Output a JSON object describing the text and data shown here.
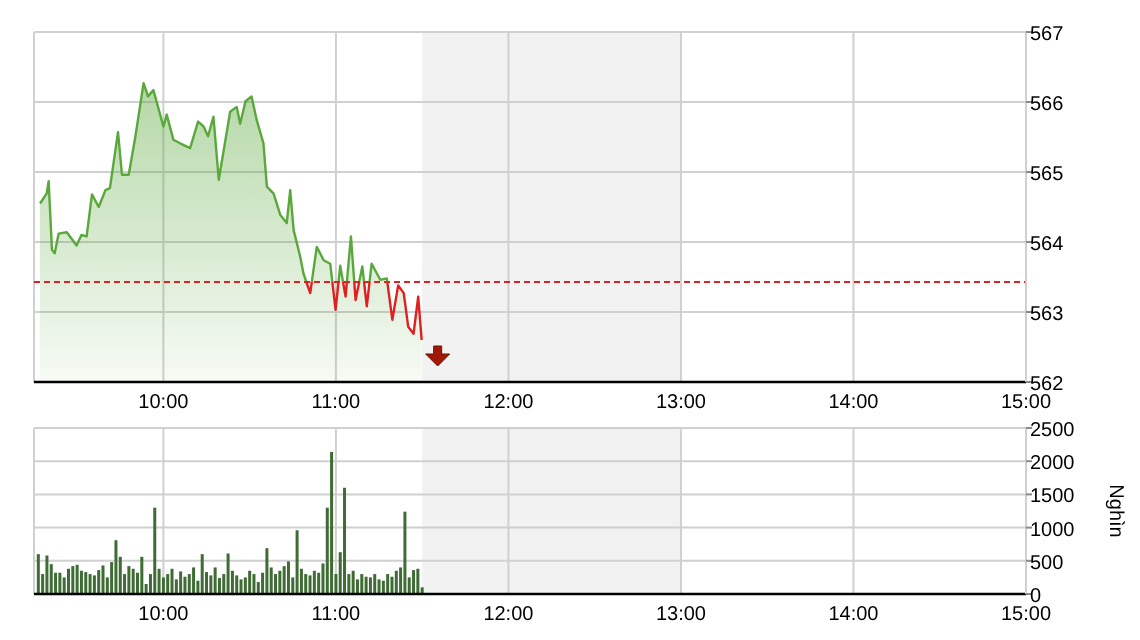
{
  "chart_data": [
    {
      "type": "area",
      "xlim": [
        9.25,
        15
      ],
      "xticks": [
        {
          "value": 10,
          "label": "10:00"
        },
        {
          "value": 11,
          "label": "11:00"
        },
        {
          "value": 12,
          "label": "12:00"
        },
        {
          "value": 13,
          "label": "13:00"
        },
        {
          "value": 14,
          "label": "14:00"
        },
        {
          "value": 15,
          "label": "15:00"
        }
      ],
      "ylim": [
        562,
        567
      ],
      "yticks": [
        562,
        563,
        564,
        565,
        566,
        567
      ],
      "grid": true,
      "series": [
        {
          "color": "#5aa83c",
          "x": [
            9.285,
            9.323,
            9.335,
            9.354,
            9.37,
            9.393,
            9.44,
            9.497,
            9.525,
            9.555,
            9.586,
            9.625,
            9.664,
            9.69,
            9.737,
            9.76,
            9.799,
            9.838,
            9.885,
            9.911,
            9.942,
            9.969,
            10,
            10.019,
            10.058,
            10.097,
            10.155,
            10.201,
            10.233,
            10.259,
            10.29,
            10.321,
            10.387,
            10.425,
            10.445,
            10.476,
            10.511,
            10.541,
            10.58,
            10.6,
            10.639,
            10.677,
            10.715,
            10.735,
            10.755,
            10.793,
            10.812,
            10.851,
            10.889,
            10.929,
            10.967,
            10.998,
            11.025,
            11.056,
            11.087,
            11.114,
            11.153,
            11.179,
            11.207,
            11.257,
            11.295,
            11.327,
            11.361,
            11.393,
            11.419,
            11.45,
            11.477,
            11.497
          ],
          "values": [
            564.55,
            564.69,
            564.87,
            563.89,
            563.84,
            564.12,
            564.14,
            563.95,
            564.1,
            564.08,
            564.68,
            564.5,
            564.74,
            564.77,
            565.57,
            564.96,
            564.96,
            565.51,
            566.27,
            566.08,
            566.17,
            565.93,
            565.65,
            565.82,
            565.46,
            565.41,
            565.34,
            565.72,
            565.65,
            565.51,
            565.79,
            564.89,
            565.86,
            565.93,
            565.69,
            566.01,
            566.08,
            565.74,
            565.41,
            564.79,
            564.69,
            564.39,
            564.27,
            564.74,
            564.17,
            563.79,
            563.55,
            563.27,
            563.93,
            563.74,
            563.69,
            563.03,
            563.66,
            563.22,
            564.08,
            563.17,
            563.65,
            563.08,
            563.69,
            563.46,
            563.48,
            562.89,
            563.38,
            563.27,
            562.79,
            562.69,
            563.22,
            562.6
          ]
        }
      ],
      "ref_lines": [
        {
          "axis": "y",
          "value": 563.43,
          "color": "#e02020",
          "line_style": "dashed"
        }
      ],
      "bands": [
        {
          "axis": "x",
          "from": 11.5,
          "to": 13,
          "color": "#f2f2f2"
        }
      ]
    },
    {
      "type": "bar",
      "ylabel": "Nghìn",
      "xlim": [
        9.25,
        15
      ],
      "xticks": [
        {
          "value": 10,
          "label": "10:00"
        },
        {
          "value": 11,
          "label": "11:00"
        },
        {
          "value": 12,
          "label": "12:00"
        },
        {
          "value": 13,
          "label": "13:00"
        },
        {
          "value": 14,
          "label": "14:00"
        },
        {
          "value": 15,
          "label": "15:00"
        }
      ],
      "ylim": [
        0,
        2500
      ],
      "yticks": [
        0,
        500,
        1000,
        1500,
        2000,
        2500
      ],
      "grid": true,
      "series": [
        {
          "color": "#3f6b35",
          "x": [
            9.275,
            9.3,
            9.325,
            9.35,
            9.375,
            9.4,
            9.425,
            9.45,
            9.475,
            9.5,
            9.525,
            9.55,
            9.575,
            9.6,
            9.625,
            9.65,
            9.675,
            9.7,
            9.725,
            9.75,
            9.775,
            9.8,
            9.825,
            9.85,
            9.875,
            9.9,
            9.925,
            9.95,
            9.975,
            10,
            10.025,
            10.05,
            10.075,
            10.1,
            10.125,
            10.15,
            10.175,
            10.2,
            10.225,
            10.25,
            10.275,
            10.3,
            10.325,
            10.35,
            10.375,
            10.4,
            10.425,
            10.45,
            10.475,
            10.5,
            10.525,
            10.55,
            10.575,
            10.6,
            10.625,
            10.65,
            10.675,
            10.7,
            10.725,
            10.75,
            10.775,
            10.8,
            10.825,
            10.85,
            10.875,
            10.9,
            10.925,
            10.95,
            10.975,
            11,
            11.025,
            11.05,
            11.075,
            11.1,
            11.125,
            11.15,
            11.175,
            11.2,
            11.225,
            11.25,
            11.275,
            11.3,
            11.325,
            11.35,
            11.375,
            11.4,
            11.425,
            11.45,
            11.475,
            11.5
          ],
          "values": [
            600,
            300,
            580,
            450,
            320,
            320,
            250,
            380,
            420,
            440,
            350,
            330,
            300,
            280,
            360,
            430,
            250,
            480,
            810,
            560,
            300,
            420,
            380,
            320,
            560,
            150,
            300,
            1300,
            380,
            250,
            300,
            380,
            220,
            340,
            260,
            300,
            400,
            200,
            600,
            330,
            280,
            400,
            240,
            300,
            610,
            350,
            280,
            220,
            250,
            350,
            300,
            180,
            320,
            690,
            400,
            300,
            350,
            420,
            490,
            250,
            960,
            380,
            300,
            280,
            350,
            320,
            460,
            1300,
            2140,
            300,
            630,
            1600,
            300,
            350,
            220,
            300,
            260,
            250,
            300,
            220,
            200,
            300,
            260,
            350,
            400,
            1240,
            250,
            360,
            380,
            100
          ]
        }
      ],
      "bands": [
        {
          "axis": "x",
          "from": 11.5,
          "to": 13,
          "color": "#f2f2f2"
        }
      ]
    }
  ]
}
